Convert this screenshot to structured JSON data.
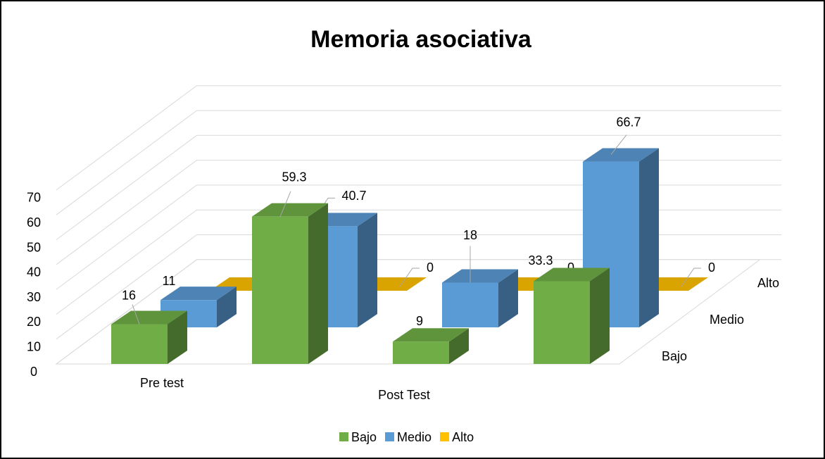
{
  "chart_data": {
    "type": "bar3d",
    "title": "Memoria asociativa",
    "categories": [
      "Pre test",
      null,
      "Post Test",
      null
    ],
    "series": [
      {
        "name": "Bajo",
        "color": "#70ad47",
        "values": [
          16,
          59.3,
          9,
          33.3
        ]
      },
      {
        "name": "Medio",
        "color": "#5b9bd5",
        "values": [
          11,
          40.7,
          18,
          66.7
        ]
      },
      {
        "name": "Alto",
        "color": "#ffc000",
        "values": [
          0,
          0,
          0,
          0
        ]
      }
    ],
    "ylim": [
      0,
      70
    ],
    "yticks": [
      0,
      10,
      20,
      30,
      40,
      50,
      60,
      70
    ],
    "grid": true,
    "legend": "bottom"
  }
}
